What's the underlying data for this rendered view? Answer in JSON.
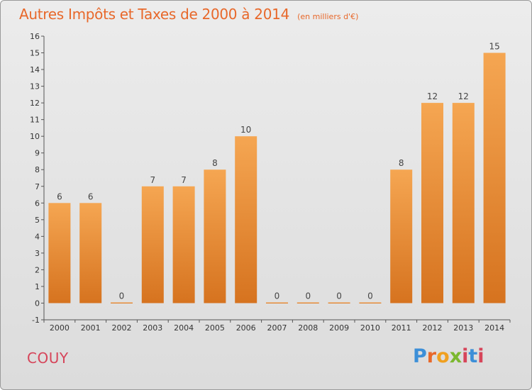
{
  "header": {
    "title": "Autres Impôts et Taxes de 2000 à 2014",
    "unit": "(en milliers d'€)"
  },
  "footer": {
    "commune": "COUY",
    "logo_text": "Proxiti"
  },
  "colors": {
    "title": "#e8682a",
    "bar_light": "#f5a652",
    "bar_dark": "#d6731f",
    "commune": "#d6455a"
  },
  "chart_data": {
    "type": "bar",
    "title": "Autres Impôts et Taxes de 2000 à 2014",
    "subtitle": "(en milliers d'€)",
    "categories": [
      "2000",
      "2001",
      "2002",
      "2003",
      "2004",
      "2005",
      "2006",
      "2007",
      "2008",
      "2009",
      "2010",
      "2011",
      "2012",
      "2013",
      "2014"
    ],
    "values": [
      6,
      6,
      0,
      7,
      7,
      8,
      10,
      0,
      0,
      0,
      0,
      8,
      12,
      12,
      15
    ],
    "data_labels": [
      "6",
      "6",
      "0",
      "7",
      "7",
      "8",
      "10",
      "0",
      "0",
      "0",
      "0",
      "8",
      "12",
      "12",
      "15"
    ],
    "ylim": [
      -1,
      16
    ],
    "yticks": [
      -1,
      0,
      1,
      2,
      3,
      4,
      5,
      6,
      7,
      8,
      9,
      10,
      11,
      12,
      13,
      14,
      15,
      16
    ],
    "xlabel": "",
    "ylabel": "",
    "grid": false,
    "legend": "none"
  }
}
